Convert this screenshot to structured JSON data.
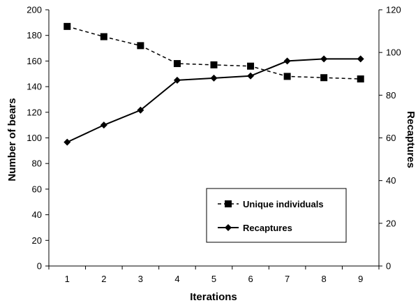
{
  "chart_data": {
    "type": "line",
    "title": "",
    "x": [
      1,
      2,
      3,
      4,
      5,
      6,
      7,
      8,
      9
    ],
    "xlabel": "Iterations",
    "ylabel_left": "Number of bears",
    "ylabel_right": "Recaptures",
    "ylim_left": [
      0,
      200
    ],
    "ylim_right": [
      0,
      120
    ],
    "yticks_left": [
      0,
      20,
      40,
      60,
      80,
      100,
      120,
      140,
      160,
      180,
      200
    ],
    "yticks_right": [
      0,
      20,
      40,
      60,
      80,
      100,
      120
    ],
    "grid": false,
    "legend_position": "bottom-right",
    "series": [
      {
        "name": "Unique individuals",
        "axis": "left",
        "marker": "square",
        "line_style": "dashed",
        "values": [
          187,
          179,
          172,
          158,
          157,
          156,
          148,
          147,
          146
        ]
      },
      {
        "name": "Recaptures",
        "axis": "right",
        "marker": "diamond",
        "line_style": "solid",
        "values": [
          58,
          66,
          73,
          87,
          88,
          89,
          96,
          97,
          97
        ]
      }
    ],
    "colors": {
      "line": "#000000",
      "background": "#ffffff"
    }
  }
}
